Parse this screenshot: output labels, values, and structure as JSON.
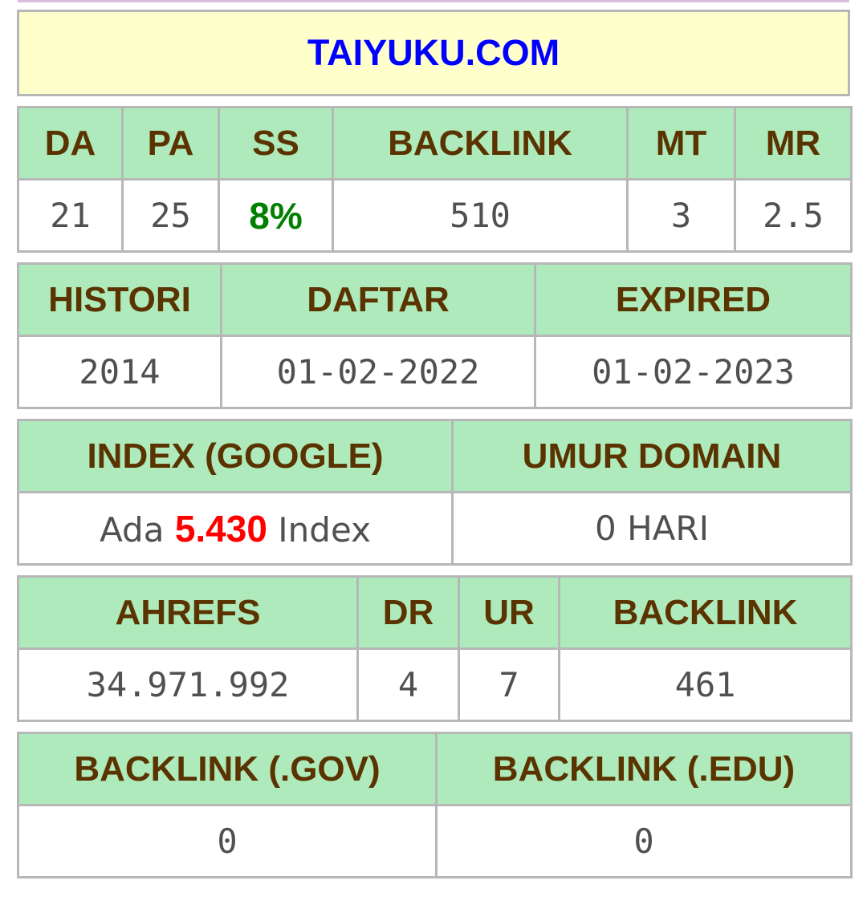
{
  "domain": {
    "name": "TAIYUKU.COM",
    "color": "#0000ff",
    "background": "#ffffcc"
  },
  "colors": {
    "header_bg": "#aeeabb",
    "header_text": "#5a3300",
    "value_text": "#505050",
    "positive": "#008000",
    "highlight": "#ff0000"
  },
  "metrics": {
    "headers": [
      "DA",
      "PA",
      "SS",
      "BACKLINK",
      "MT",
      "MR"
    ],
    "values": [
      "21",
      "25",
      "8%",
      "510",
      "3",
      "2.5"
    ]
  },
  "dates": {
    "headers": [
      "HISTORI",
      "DAFTAR",
      "EXPIRED"
    ],
    "values": [
      "2014",
      "01-02-2022",
      "01-02-2023"
    ]
  },
  "index": {
    "headers": [
      "INDEX (GOOGLE)",
      "UMUR DOMAIN"
    ],
    "prefix": "Ada",
    "count": "5.430",
    "suffix": "Index",
    "age": "0 HARI"
  },
  "ahrefs": {
    "headers": [
      "AHREFS",
      "DR",
      "UR",
      "BACKLINK"
    ],
    "values": [
      "34.971.992",
      "4",
      "7",
      "461"
    ]
  },
  "special_backlinks": {
    "headers": [
      "BACKLINK (.GOV)",
      "BACKLINK (.EDU)"
    ],
    "values": [
      "0",
      "0"
    ]
  }
}
